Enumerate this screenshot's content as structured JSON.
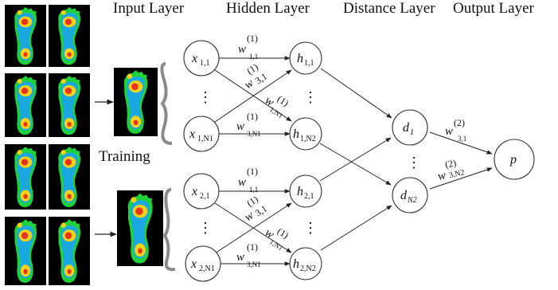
{
  "headers": {
    "input": "Input Layer",
    "hidden": "Hidden Layer",
    "distance": "Distance Layer",
    "output": "Output Layer"
  },
  "training_label": "Training",
  "nodes": {
    "x11": {
      "base": "x",
      "sub": "1,1"
    },
    "x1n": {
      "base": "x",
      "sub": "1,N1"
    },
    "h11": {
      "base": "h",
      "sub": "1,1"
    },
    "h1n": {
      "base": "h",
      "sub": "1,N2"
    },
    "x21": {
      "base": "x",
      "sub": "2,1"
    },
    "x2n": {
      "base": "x",
      "sub": "2,N1"
    },
    "h21": {
      "base": "h",
      "sub": "2,1"
    },
    "h2n": {
      "base": "h",
      "sub": "2,N2"
    },
    "d1": {
      "base": "d",
      "sub": "1"
    },
    "dn": {
      "base": "d",
      "sub": "N2"
    },
    "p": {
      "base": "p",
      "sub": ""
    }
  },
  "weights": {
    "top_w11": {
      "base": "w",
      "sup": "(1)",
      "sub": "1,1"
    },
    "top_w31": {
      "base": "w",
      "sup": "(1)",
      "sub": "3,1"
    },
    "top_w1n": {
      "base": "w",
      "sup": "(1)",
      "sub": "1,N1"
    },
    "top_w3n": {
      "base": "w",
      "sup": "(1)",
      "sub": "3,N1"
    },
    "bot_w11": {
      "base": "w",
      "sup": "(1)",
      "sub": "1,1"
    },
    "bot_w31": {
      "base": "w",
      "sup": "(1)",
      "sub": "3,1"
    },
    "bot_w1n": {
      "base": "w",
      "sup": "(1)",
      "sub": "1,N1"
    },
    "bot_w3n": {
      "base": "w",
      "sup": "(1)",
      "sub": "3,N1"
    },
    "out_w31": {
      "base": "w",
      "sup": "(2)",
      "sub": "3,1"
    },
    "out_w3n": {
      "base": "w",
      "sup": "(2)",
      "sub": "3,N2"
    }
  },
  "ellipsis": "⋮",
  "colors": {
    "node_stroke": "#333333",
    "bracket": "#8a8a8a",
    "thumb_bg": "#000000",
    "foot_outer": "#1fd13a",
    "foot_mid": "#1aa8e0",
    "foot_hot": "#f2d21b",
    "foot_peak": "#e8331a"
  }
}
